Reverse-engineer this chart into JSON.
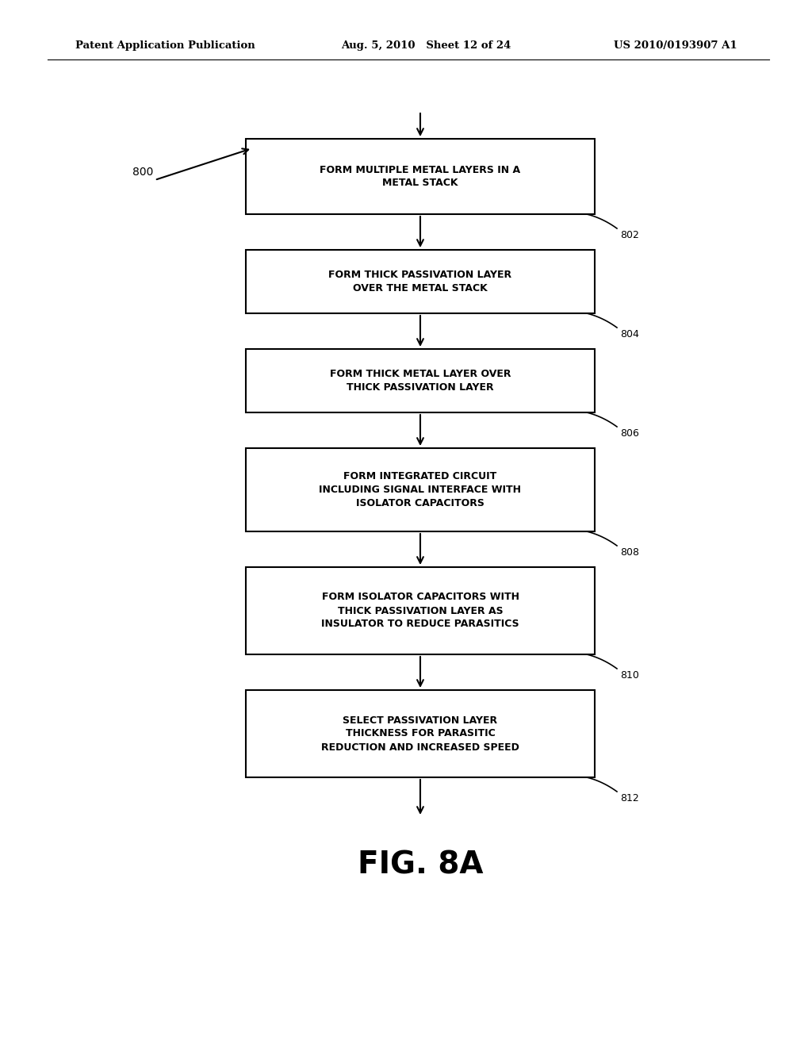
{
  "header_left": "Patent Application Publication",
  "header_mid": "Aug. 5, 2010   Sheet 12 of 24",
  "header_right": "US 2010/0193907 A1",
  "fig_label": "FIG. 8A",
  "diagram_label": "800",
  "background_color": "#ffffff",
  "box_edge_color": "#000000",
  "box_fill_color": "#ffffff",
  "text_color": "#000000",
  "boxes": [
    {
      "label": "802",
      "lines": [
        "FORM MULTIPLE METAL LAYERS IN A",
        "METAL STACK"
      ]
    },
    {
      "label": "804",
      "lines": [
        "FORM THICK PASSIVATION LAYER",
        "OVER THE METAL STACK"
      ]
    },
    {
      "label": "806",
      "lines": [
        "FORM THICK METAL LAYER OVER",
        "THICK PASSIVATION LAYER"
      ]
    },
    {
      "label": "808",
      "lines": [
        "FORM INTEGRATED CIRCUIT",
        "INCLUDING SIGNAL INTERFACE WITH",
        "ISOLATOR CAPACITORS"
      ]
    },
    {
      "label": "810",
      "lines": [
        "FORM ISOLATOR CAPACITORS WITH",
        "THICK PASSIVATION LAYER AS",
        "INSULATOR TO REDUCE PARASITICS"
      ]
    },
    {
      "label": "812",
      "lines": [
        "SELECT PASSIVATION LAYER",
        "THICKNESS FOR PARASITIC",
        "REDUCTION AND INCREASED SPEED"
      ]
    }
  ]
}
